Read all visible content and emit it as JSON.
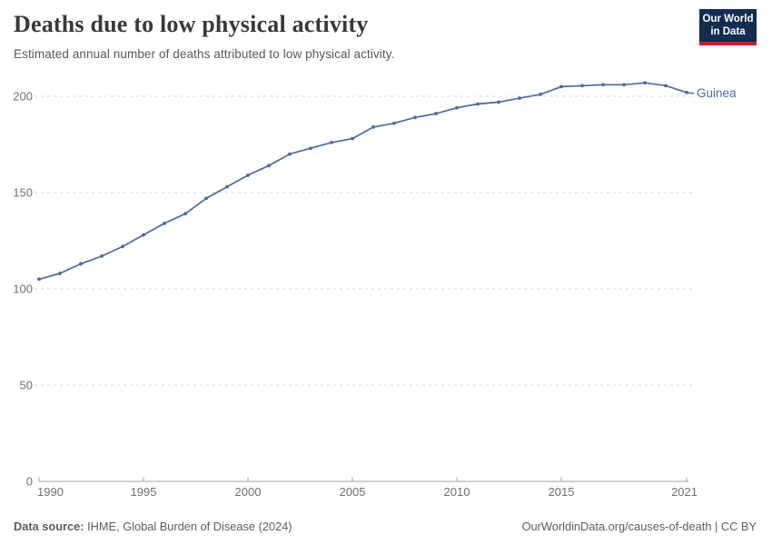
{
  "header": {
    "title": "Deaths due to low physical activity",
    "subtitle": "Estimated annual number of deaths attributed to low physical activity."
  },
  "logo": {
    "line1": "Our World",
    "line2": "in Data",
    "bg_color": "#132c4f",
    "bar_color": "#c7202c"
  },
  "chart_data": {
    "type": "line",
    "title": "Deaths due to low physical activity",
    "subtitle": "Estimated annual number of deaths attributed to low physical activity.",
    "xlabel": "",
    "ylabel": "",
    "x": [
      1990,
      1991,
      1992,
      1993,
      1994,
      1995,
      1996,
      1997,
      1998,
      1999,
      2000,
      2001,
      2002,
      2003,
      2004,
      2005,
      2006,
      2007,
      2008,
      2009,
      2010,
      2011,
      2012,
      2013,
      2014,
      2015,
      2016,
      2017,
      2018,
      2019,
      2020,
      2021
    ],
    "series": [
      {
        "name": "Guinea",
        "color": "#4c6a9c",
        "values": [
          105,
          108,
          113,
          117,
          122,
          128,
          134,
          139,
          147,
          153,
          159,
          164,
          170,
          173,
          176,
          178,
          184,
          186,
          189,
          191,
          194,
          196,
          197,
          199,
          201,
          205,
          205.5,
          206,
          206,
          207,
          205.5,
          202
        ]
      }
    ],
    "x_ticks": [
      1990,
      1995,
      2000,
      2005,
      2010,
      2015,
      2021
    ],
    "x_tick_labels": [
      "1990",
      "1995",
      "2000",
      "2005",
      "2010",
      "2015",
      "2021"
    ],
    "y_ticks": [
      0,
      50,
      100,
      150,
      200
    ],
    "ylim": [
      0,
      212
    ],
    "grid": "horizontal-dashed",
    "legend": "entity-label-at-line-end",
    "colors": {
      "gridline": "#dadada",
      "axis_line": "#a3a3a3",
      "tick_text": "#707070"
    }
  },
  "footer": {
    "source_label": "Data source:",
    "source_value": "IHME, Global Burden of Disease (2024)",
    "citation": "OurWorldinData.org/causes-of-death | CC BY"
  }
}
